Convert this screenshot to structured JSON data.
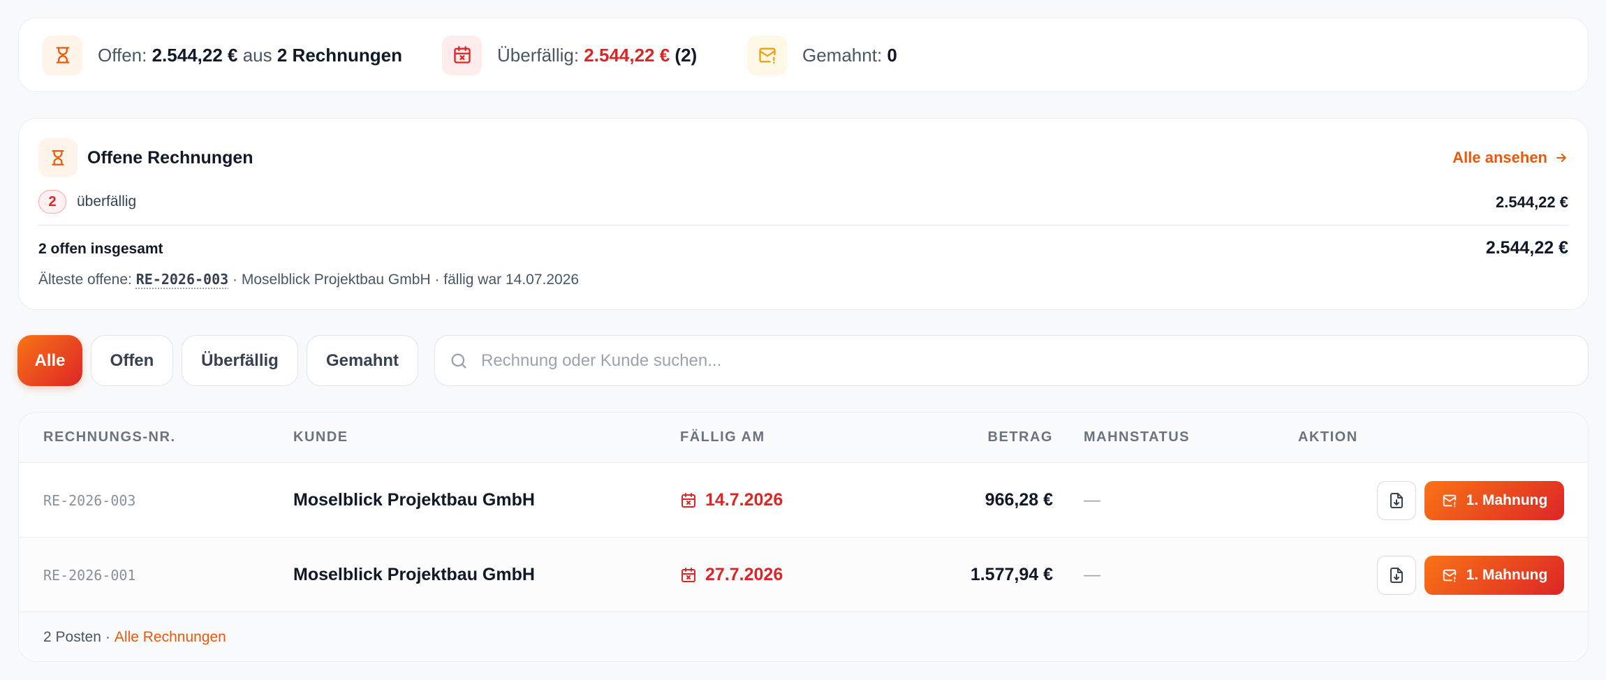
{
  "summary": {
    "open_label": "Offen:",
    "open_amount": "2.544,22 €",
    "open_from": "aus",
    "open_count": "2 Rechnungen",
    "overdue_label": "Überfällig:",
    "overdue_amount": "2.544,22 €",
    "overdue_count": "(2)",
    "reminded_label": "Gemahnt:",
    "reminded_value": "0"
  },
  "open_invoices": {
    "title": "Offene Rechnungen",
    "link_label": "Alle ansehen",
    "overdue_badge": "2",
    "overdue_label": "überfällig",
    "overdue_amount": "2.544,22 €",
    "total_label": "2 offen insgesamt",
    "total_amount": "2.544,22 €",
    "oldest_prefix": "Älteste offene:",
    "oldest_number": "RE-2026-003",
    "oldest_suffix": "· Moselblick Projektbau GmbH · fällig war 14.07.2026"
  },
  "filters": {
    "all": "Alle",
    "open": "Offen",
    "overdue": "Überfällig",
    "reminded": "Gemahnt",
    "search_placeholder": "Rechnung oder Kunde suchen...",
    "search_value": ""
  },
  "table": {
    "headers": {
      "number": "RECHNUNGS-NR.",
      "customer": "KUNDE",
      "due": "FÄLLIG AM",
      "amount": "BETRAG",
      "status": "MAHNSTATUS",
      "action": "AKTION"
    },
    "rows": [
      {
        "number": "RE-2026-003",
        "customer": "Moselblick Projektbau GmbH",
        "due": "14.7.2026",
        "amount": "966,28 €",
        "status": "—",
        "action": "1. Mahnung"
      },
      {
        "number": "RE-2026-001",
        "customer": "Moselblick Projektbau GmbH",
        "due": "27.7.2026",
        "amount": "1.577,94 €",
        "status": "—",
        "action": "1. Mahnung"
      }
    ],
    "footer_count": "2 Posten",
    "footer_sep": "·",
    "footer_link": "Alle Rechnungen"
  },
  "colors": {
    "accent": "#ea580c",
    "danger": "#dc2626",
    "gradient_start": "#f97316",
    "gradient_end": "#dc2626"
  },
  "icons": {
    "open": "hourglass-icon",
    "overdue": "calendar-x-icon",
    "reminded": "mail-alert-icon",
    "search": "search-icon",
    "download": "file-download-icon",
    "arrow": "arrow-right-icon"
  }
}
